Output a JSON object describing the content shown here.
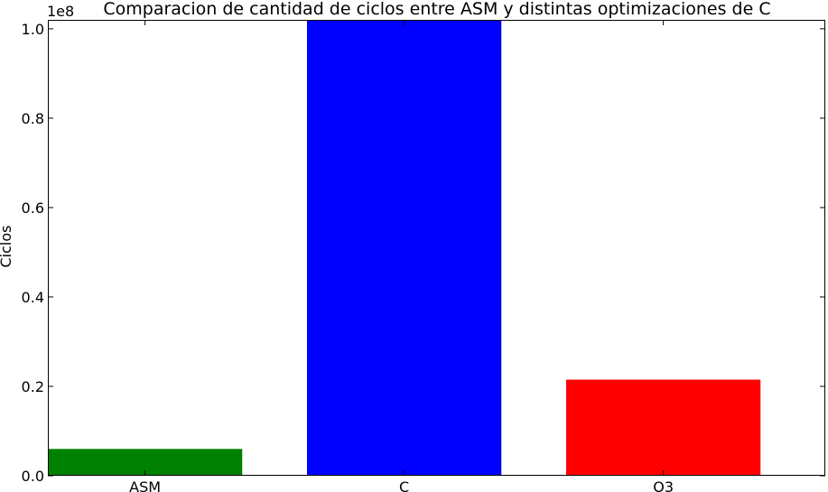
{
  "chart_data": {
    "type": "bar",
    "title": "Comparacion de cantidad de ciclos entre ASM y distintas optimizaciones de C",
    "xlabel": "",
    "ylabel": "Ciclos",
    "scale_label": "1e8",
    "categories": [
      "ASM",
      "C",
      "O3"
    ],
    "values": [
      6000000,
      101800000,
      21500000
    ],
    "colors": [
      "#008000",
      "#0000ff",
      "#ff0000"
    ],
    "ylim": [
      0,
      102000000
    ],
    "y_ticks": [
      0,
      20000000,
      40000000,
      60000000,
      80000000,
      100000000
    ],
    "y_tick_labels": [
      "0.0",
      "0.2",
      "0.4",
      "0.6",
      "0.8",
      "1.0"
    ],
    "grid": false,
    "legend": "none"
  }
}
